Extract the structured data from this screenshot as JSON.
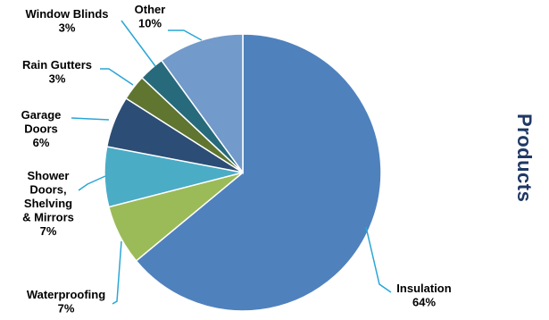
{
  "chart_data": {
    "type": "pie",
    "title": "Products",
    "slices": [
      {
        "label": "Insulation",
        "value": 64,
        "display": "64%",
        "color": "#4f81bd"
      },
      {
        "label": "Waterproofing",
        "value": 7,
        "display": "7%",
        "color": "#9bbb59"
      },
      {
        "label": "Shower Doors, Shelving & Mirrors",
        "value": 7,
        "display": "7%",
        "color": "#4bacc6"
      },
      {
        "label": "Garage Doors",
        "value": 6,
        "display": "6%",
        "color": "#2c4d75"
      },
      {
        "label": "Rain Gutters",
        "value": 3,
        "display": "3%",
        "color": "#5f7530"
      },
      {
        "label": "Window Blinds",
        "value": 3,
        "display": "3%",
        "color": "#276a7c"
      },
      {
        "label": "Other",
        "value": 10,
        "display": "10%",
        "color": "#729aca"
      }
    ],
    "start_angle_deg": 0,
    "direction": "clockwise",
    "leader_line_color": "#2aa6d6",
    "title_color": "#1f3864"
  }
}
